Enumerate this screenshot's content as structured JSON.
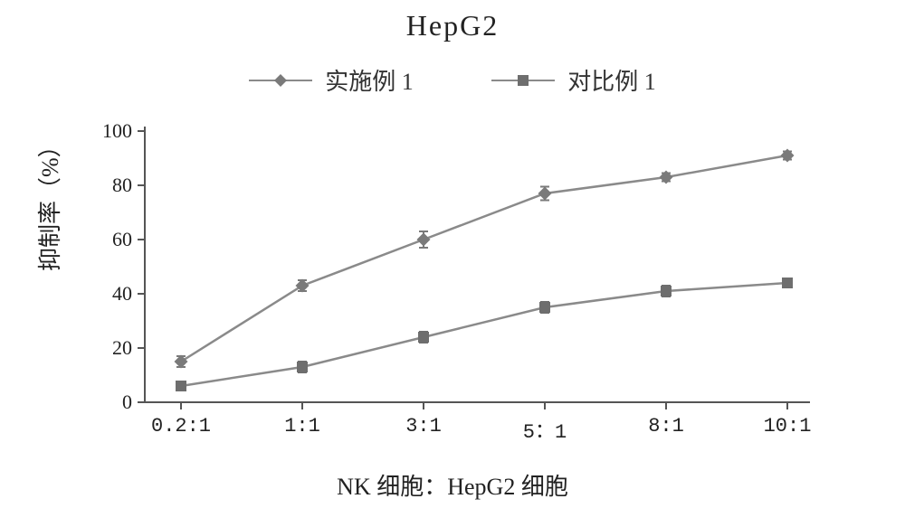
{
  "title": "HepG2",
  "legend": {
    "series1_label": "实施例 1",
    "series2_label": "对比例 1"
  },
  "chart": {
    "type": "line",
    "categories": [
      "0.2:1",
      "1:1",
      "3:1",
      "5：1",
      "8:1",
      "10:1"
    ],
    "series1": {
      "name": "实施例 1",
      "marker": "diamond",
      "color": "#7a7a7a",
      "line_color": "#8a8a8a",
      "values": [
        15,
        43,
        60,
        77,
        83,
        91
      ],
      "errors": [
        2,
        2,
        3,
        2.5,
        1.5,
        1.5
      ]
    },
    "series2": {
      "name": "对比例 1",
      "marker": "square",
      "color": "#6e6e6e",
      "line_color": "#8a8a8a",
      "values": [
        6,
        13,
        24,
        35,
        41,
        44
      ],
      "errors": [
        1.5,
        2,
        2,
        2,
        2,
        1.5
      ]
    },
    "ylim": [
      0,
      100
    ],
    "ytick_step": 20,
    "yticks": [
      0,
      20,
      40,
      60,
      80,
      100
    ],
    "ylabel": "抑制率（%）",
    "xlabel": "NK 细胞：HepG2 细胞",
    "background_color": "#ffffff",
    "axis_color": "#555555",
    "marker_size": 12,
    "line_width": 2.5,
    "title_fontsize": 32,
    "legend_fontsize": 26,
    "axis_label_fontsize": 26,
    "tick_fontsize": 22
  }
}
